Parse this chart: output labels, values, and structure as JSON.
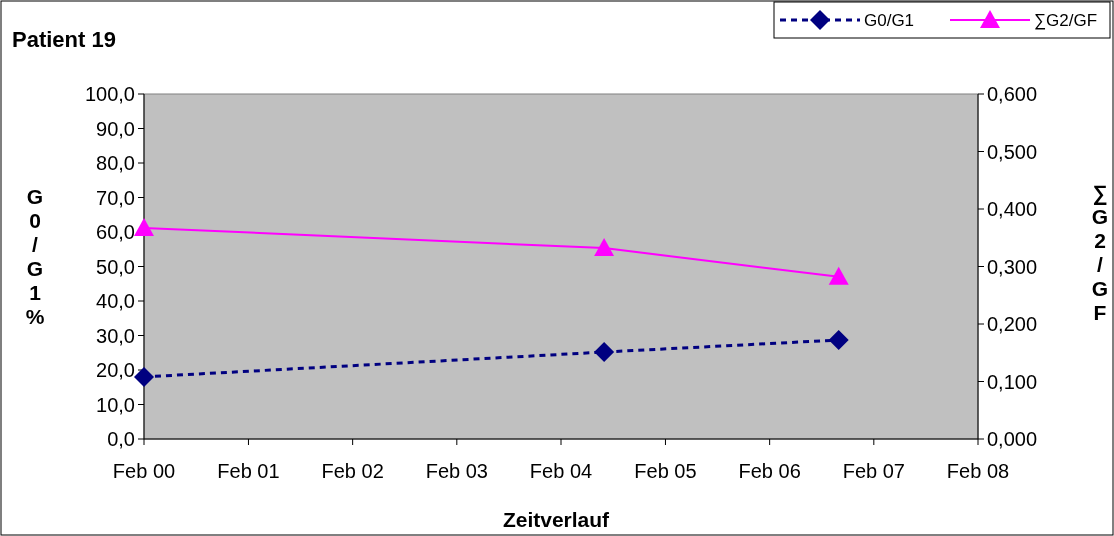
{
  "chart_data": {
    "type": "line",
    "title": "Patient 19",
    "xlabel": "Zeitverlauf",
    "ylabel": "G0/G1 %",
    "y2label": "∑G2/GF",
    "x": [
      "2000-02",
      "2004-07",
      "2006-10"
    ],
    "series": [
      {
        "name": "G0/G1",
        "color": "#000080",
        "values": [
          18.0,
          25.2,
          28.7
        ],
        "marker": "diamond",
        "line_style": "dashed"
      },
      {
        "name": "∑G2/GF",
        "color": "#ff00ff",
        "values": [
          0.367,
          0.332,
          0.282
        ],
        "marker": "triangle",
        "line_style": "solid",
        "axis": "y2"
      }
    ],
    "xlim": [
      "2000-02",
      "2008-02"
    ],
    "xticks": [
      {
        "value": "2000-02",
        "label": "Feb 00"
      },
      {
        "value": "2001-02",
        "label": "Feb 01"
      },
      {
        "value": "2002-02",
        "label": "Feb 02"
      },
      {
        "value": "2003-02",
        "label": "Feb 03"
      },
      {
        "value": "2004-02",
        "label": "Feb 04"
      },
      {
        "value": "2005-02",
        "label": "Feb 05"
      },
      {
        "value": "2006-02",
        "label": "Feb 06"
      },
      {
        "value": "2007-02",
        "label": "Feb 07"
      },
      {
        "value": "2008-02",
        "label": "Feb 08"
      }
    ],
    "ylim": [
      0,
      100
    ],
    "yticks": [
      {
        "value": 0,
        "label": "0,0"
      },
      {
        "value": 10,
        "label": "10,0"
      },
      {
        "value": 20,
        "label": "20,0"
      },
      {
        "value": 30,
        "label": "30,0"
      },
      {
        "value": 40,
        "label": "40,0"
      },
      {
        "value": 50,
        "label": "50,0"
      },
      {
        "value": 60,
        "label": "60,0"
      },
      {
        "value": 70,
        "label": "70,0"
      },
      {
        "value": 80,
        "label": "80,0"
      },
      {
        "value": 90,
        "label": "90,0"
      },
      {
        "value": 100,
        "label": "100,0"
      }
    ],
    "y2lim": [
      0,
      0.6
    ],
    "y2ticks": [
      {
        "value": 0,
        "label": "0,000"
      },
      {
        "value": 0.1,
        "label": "0,100"
      },
      {
        "value": 0.2,
        "label": "0,200"
      },
      {
        "value": 0.3,
        "label": "0,300"
      },
      {
        "value": 0.4,
        "label": "0,400"
      },
      {
        "value": 0.5,
        "label": "0,500"
      },
      {
        "value": 0.6,
        "label": "0,600"
      }
    ],
    "grid": false,
    "legend": "top right"
  }
}
